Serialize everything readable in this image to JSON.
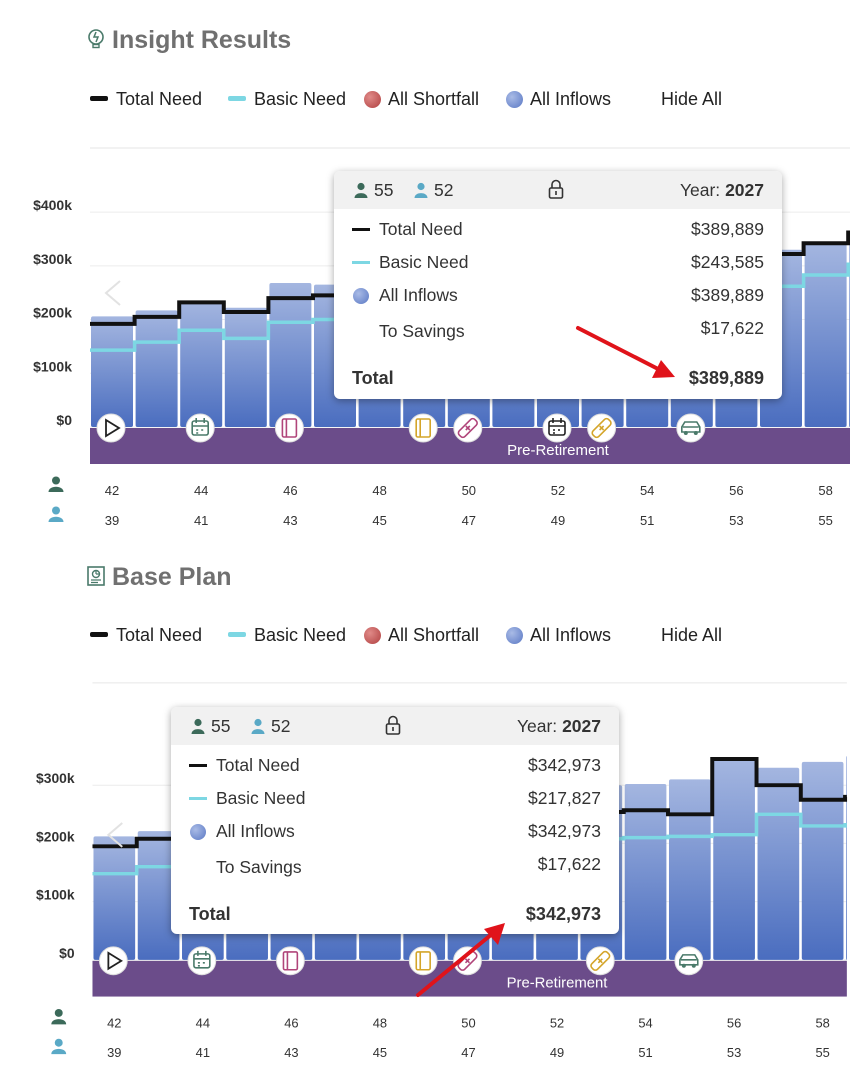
{
  "colors": {
    "total_need": "#111111",
    "basic_need": "#7dd7e3",
    "shortfall": "#c0504d",
    "inflows": "#6f8bd1",
    "phase_band": "#6b4c8a",
    "bar_top": "#a4b6e0",
    "bar_bottom": "#4a6dbf",
    "arrow": "#e0131a"
  },
  "legend": {
    "total_need": "Total Need",
    "basic_need": "Basic Need",
    "all_shortfall": "All Shortfall",
    "all_inflows": "All Inflows",
    "hide_all": "Hide All"
  },
  "panels": [
    {
      "title": "Insight Results",
      "title_icon": "lightbulb-icon",
      "tooltip": {
        "person1_age": "55",
        "person2_age": "52",
        "lock_icon": "lock-icon",
        "year_label": "Year:",
        "year": "2027",
        "rows": [
          {
            "label": "Total Need",
            "value": "$389,889"
          },
          {
            "label": "Basic Need",
            "value": "$243,585"
          },
          {
            "label": "All Inflows",
            "value": "$389,889"
          },
          {
            "label": "To Savings",
            "value": "$17,622"
          }
        ],
        "total_label": "Total",
        "total_value": "$389,889"
      }
    },
    {
      "title": "Base Plan",
      "title_icon": "report-icon",
      "tooltip": {
        "person1_age": "55",
        "person2_age": "52",
        "lock_icon": "lock-icon",
        "year_label": "Year:",
        "year": "2027",
        "rows": [
          {
            "label": "Total Need",
            "value": "$342,973"
          },
          {
            "label": "Basic Need",
            "value": "$217,827"
          },
          {
            "label": "All Inflows",
            "value": "$342,973"
          },
          {
            "label": "To Savings",
            "value": "$17,622"
          }
        ],
        "total_label": "Total",
        "total_value": "$342,973"
      }
    }
  ],
  "chart_data": [
    {
      "type": "bar",
      "ylim": [
        0,
        430000
      ],
      "y_ticks": [
        {
          "value": 0,
          "label": "$0"
        },
        {
          "value": 100000,
          "label": "$100k"
        },
        {
          "value": 200000,
          "label": "$200k"
        },
        {
          "value": 300000,
          "label": "$300k"
        },
        {
          "value": 400000,
          "label": "$400k"
        }
      ],
      "age1_labels": [
        "42",
        "44",
        "46",
        "48",
        "50",
        "52",
        "54",
        "56",
        "58"
      ],
      "age2_labels": [
        "39",
        "41",
        "43",
        "45",
        "47",
        "49",
        "51",
        "53",
        "55"
      ],
      "phase_label": "Pre-Retirement",
      "event_icons": [
        {
          "index": 0,
          "name": "play-icon",
          "color": "#222222"
        },
        {
          "index": 2,
          "name": "calendar-icon",
          "color": "#4a7a6a"
        },
        {
          "index": 4,
          "name": "book-icon",
          "color": "#b0457a"
        },
        {
          "index": 7,
          "name": "book-icon",
          "color": "#d4a52a"
        },
        {
          "index": 8,
          "name": "bandage-icon",
          "color": "#b0457a"
        },
        {
          "index": 10,
          "name": "calendar-icon",
          "color": "#222222"
        },
        {
          "index": 11,
          "name": "bandage-icon",
          "color": "#d4a52a"
        },
        {
          "index": 13,
          "name": "car-icon",
          "color": "#4a7a6a"
        }
      ],
      "series": [
        {
          "name": "All Inflows",
          "kind": "bar",
          "values": [
            206000,
            217000,
            235000,
            222000,
            268000,
            265000,
            250000,
            250000,
            250000,
            250000,
            250000,
            250000,
            250000,
            250000,
            260000,
            330000,
            342000,
            362000
          ]
        },
        {
          "name": "Total Need",
          "kind": "step",
          "values": [
            192000,
            205000,
            232000,
            214000,
            240000,
            245000,
            250000,
            250000,
            250000,
            250000,
            250000,
            250000,
            250000,
            250000,
            270000,
            322000,
            342000,
            362000
          ]
        },
        {
          "name": "Basic Need",
          "kind": "step",
          "values": [
            143000,
            158000,
            180000,
            165000,
            195000,
            200000,
            205000,
            205000,
            205000,
            205000,
            205000,
            205000,
            205000,
            205000,
            225000,
            262000,
            283000,
            303000
          ]
        }
      ]
    },
    {
      "type": "bar",
      "ylim": [
        0,
        370000
      ],
      "y_ticks": [
        {
          "value": 0,
          "label": "$0"
        },
        {
          "value": 100000,
          "label": "$100k"
        },
        {
          "value": 200000,
          "label": "$200k"
        },
        {
          "value": 300000,
          "label": "$300k"
        }
      ],
      "age1_labels": [
        "42",
        "44",
        "46",
        "48",
        "50",
        "52",
        "54",
        "56",
        "58"
      ],
      "age2_labels": [
        "39",
        "41",
        "43",
        "45",
        "47",
        "49",
        "51",
        "53",
        "55"
      ],
      "phase_label": "Pre-Retirement",
      "event_icons": [
        {
          "index": 0,
          "name": "play-icon",
          "color": "#222222"
        },
        {
          "index": 2,
          "name": "calendar-icon",
          "color": "#4a7a6a"
        },
        {
          "index": 4,
          "name": "book-icon",
          "color": "#b0457a"
        },
        {
          "index": 7,
          "name": "book-icon",
          "color": "#d4a52a"
        },
        {
          "index": 8,
          "name": "bandage-icon",
          "color": "#b0457a"
        },
        {
          "index": 11,
          "name": "bandage-icon",
          "color": "#d4a52a"
        },
        {
          "index": 13,
          "name": "car-icon",
          "color": "#4a7a6a"
        }
      ],
      "series": [
        {
          "name": "All Inflows",
          "kind": "bar",
          "values": [
            212000,
            221000,
            225000,
            230000,
            235000,
            238000,
            240000,
            242000,
            245000,
            248000,
            250000,
            300000,
            302000,
            310000,
            345000,
            330000,
            340000,
            350000
          ]
        },
        {
          "name": "Total Need",
          "kind": "step",
          "values": [
            195000,
            208000,
            212000,
            218000,
            222000,
            226000,
            230000,
            235000,
            240000,
            245000,
            250000,
            254000,
            257000,
            250000,
            345000,
            300000,
            275000,
            280000
          ]
        },
        {
          "name": "Basic Need",
          "kind": "step",
          "values": [
            148000,
            160000,
            165000,
            170000,
            175000,
            180000,
            185000,
            190000,
            195000,
            200000,
            205000,
            208000,
            210000,
            212000,
            215000,
            250000,
            230000,
            232000
          ]
        }
      ]
    }
  ]
}
